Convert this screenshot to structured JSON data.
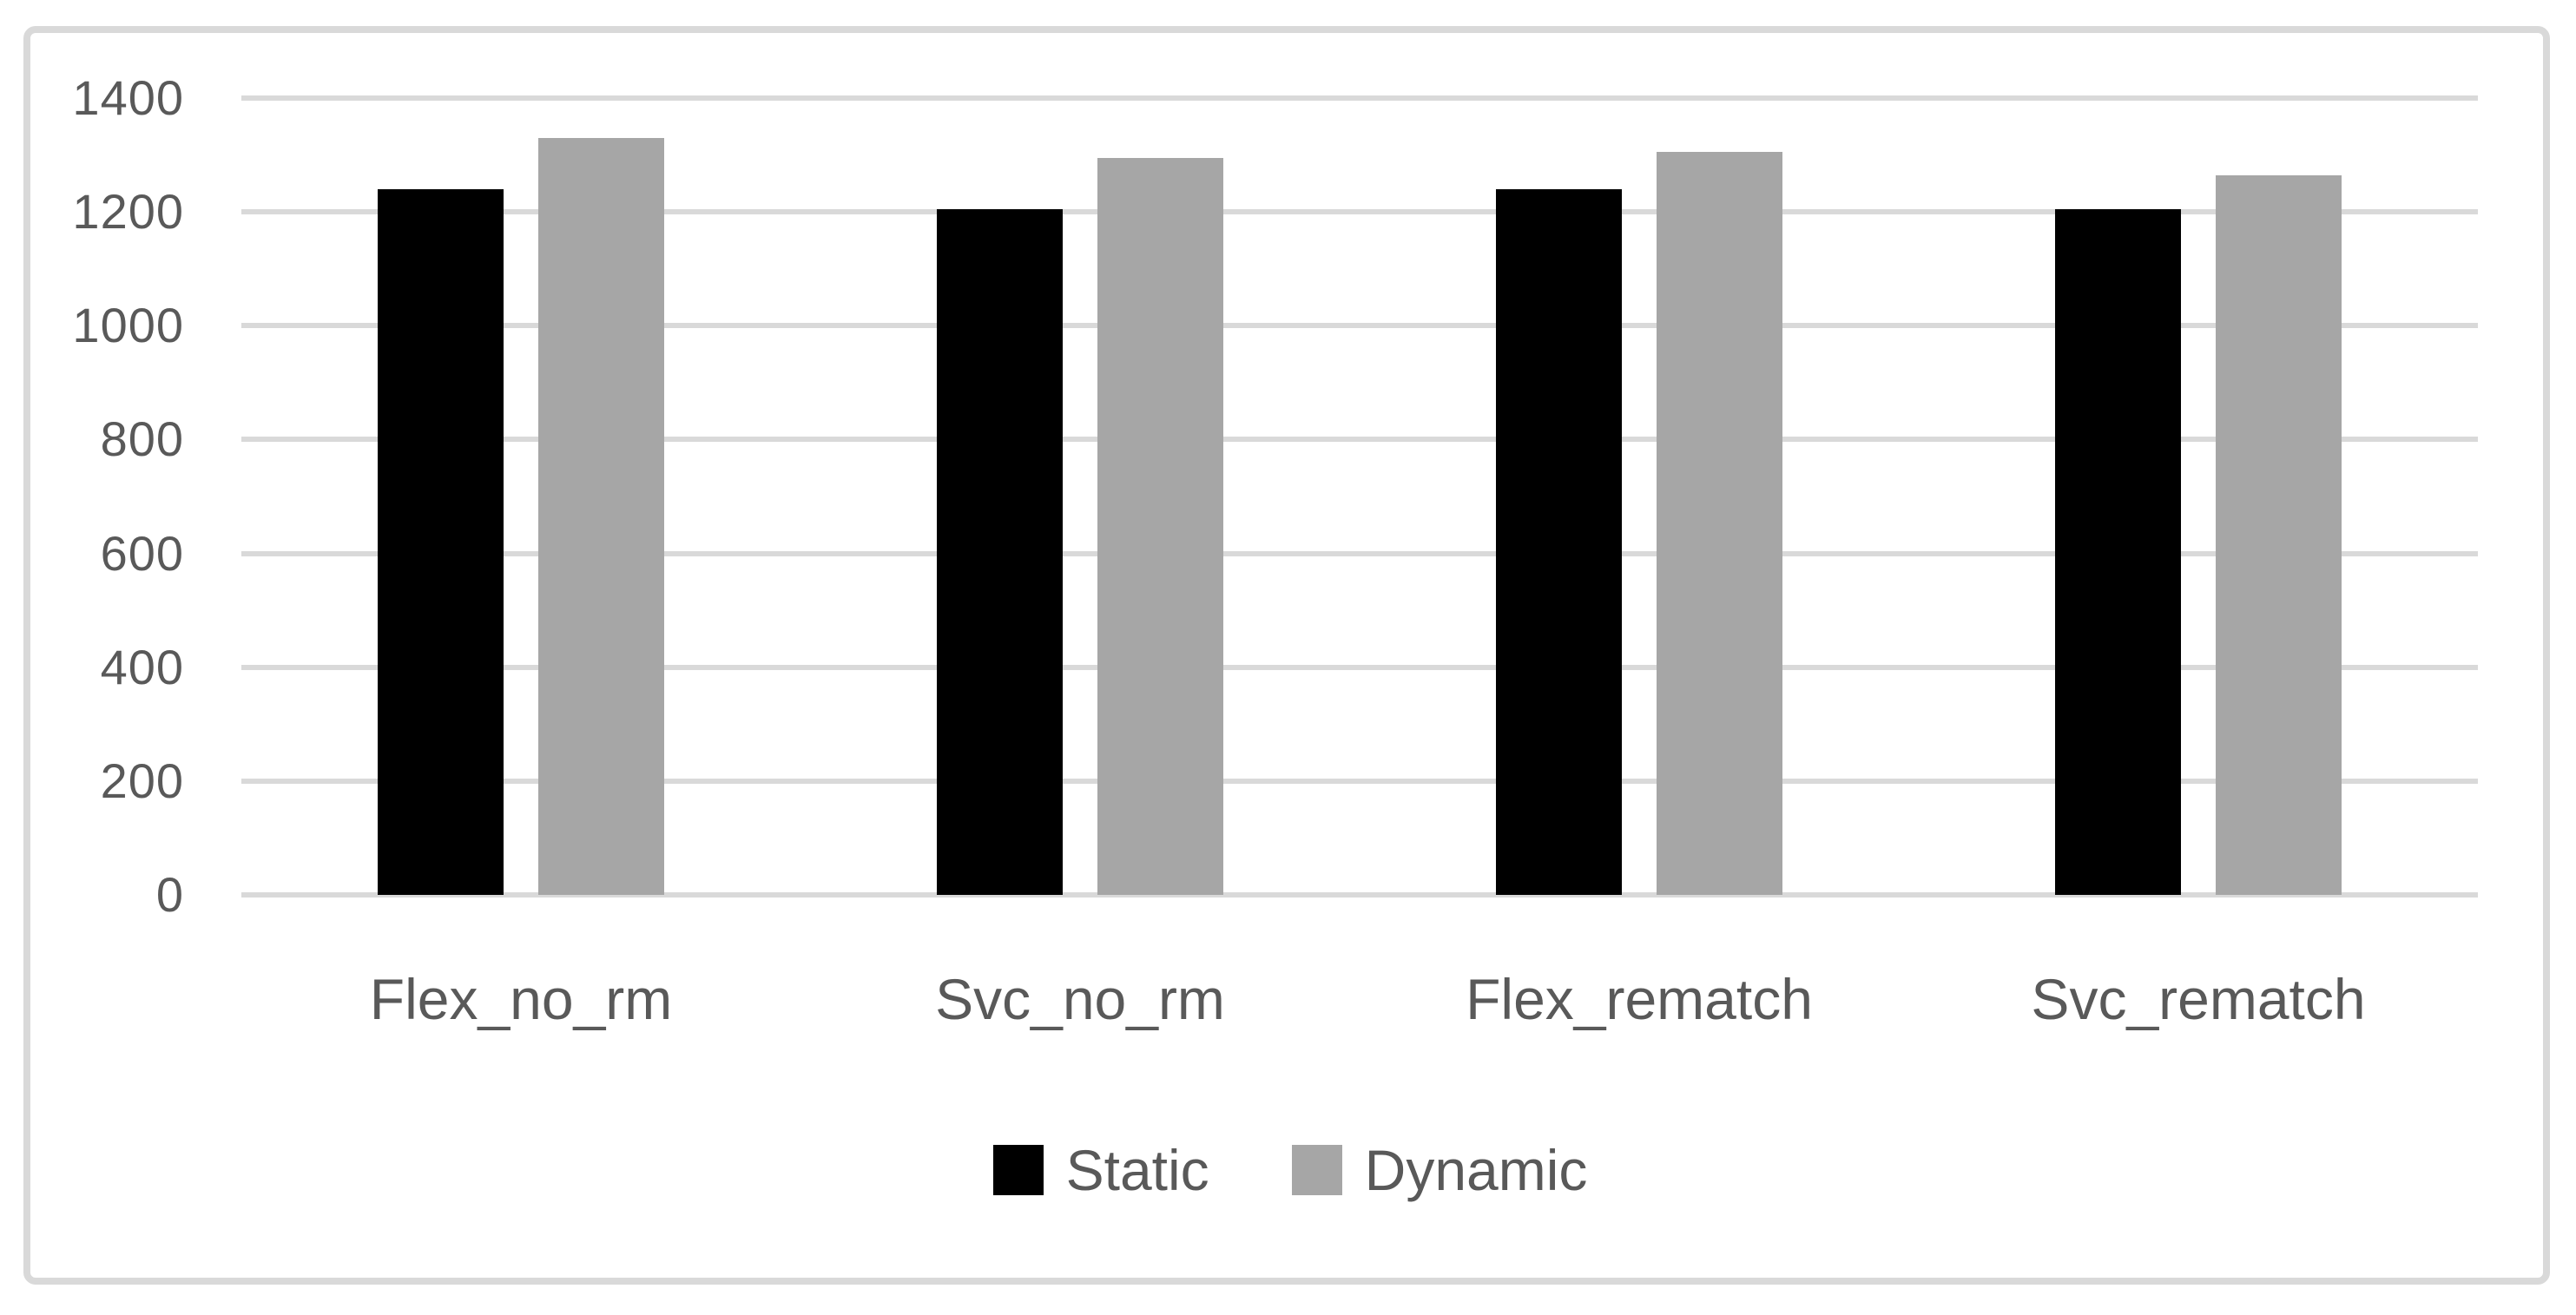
{
  "style": {
    "frame_border_color": "#d9d9d9",
    "gridline_color": "#d9d9d9",
    "axis_line_color": "#d9d9d9",
    "label_color": "#595959",
    "background_color": "#ffffff"
  },
  "chart_data": {
    "type": "bar",
    "title": "",
    "xlabel": "",
    "ylabel": "",
    "categories": [
      "Flex_no_rm",
      "Svc_no_rm",
      "Flex_rematch",
      "Svc_rematch"
    ],
    "series": [
      {
        "name": "Static",
        "color": "#000000",
        "values": [
          1240,
          1205,
          1240,
          1205
        ]
      },
      {
        "name": "Dynamic",
        "color": "#a6a6a6",
        "values": [
          1330,
          1295,
          1305,
          1265
        ]
      }
    ],
    "ylim": [
      0,
      1400
    ],
    "ytick_interval": 200,
    "yticks": [
      0,
      200,
      400,
      600,
      800,
      1000,
      1200,
      1400
    ],
    "grid": "horizontal",
    "legend_position": "bottom"
  }
}
